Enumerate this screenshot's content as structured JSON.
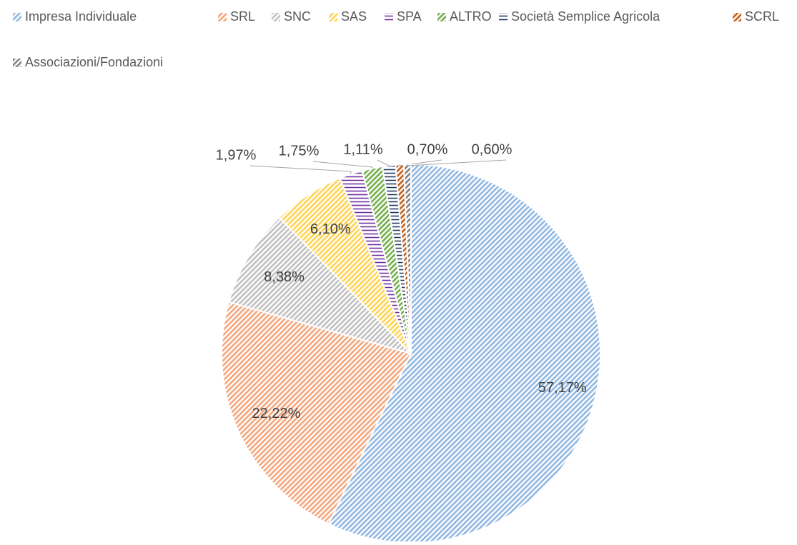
{
  "chart_data": {
    "type": "pie",
    "categories": [
      "Impresa Individuale",
      "SRL",
      "SNC",
      "SAS",
      "SPA",
      "ALTRO",
      "Società Semplice Agricola",
      "SCRL",
      "Associazioni/Fondazioni"
    ],
    "values": [
      57.17,
      22.22,
      8.38,
      6.1,
      1.97,
      1.75,
      1.11,
      0.7,
      0.6
    ],
    "value_labels": [
      "57,17%",
      "22,22%",
      "8,38%",
      "6,10%",
      "1,97%",
      "1,75%",
      "1,11%",
      "0,70%",
      "0,60%"
    ],
    "colors": [
      "#8fb6e3",
      "#f4a57a",
      "#bfbfbf",
      "#ffd24d",
      "#7030a0",
      "#70ad47",
      "#203864",
      "#c55a11",
      "#7f7f7f"
    ],
    "patterns": [
      "diagonal",
      "diagonal",
      "diagonal",
      "diagonal",
      "horizontal",
      "diagonal",
      "horizontal",
      "diagonal",
      "diagonal"
    ],
    "legend": "top"
  }
}
